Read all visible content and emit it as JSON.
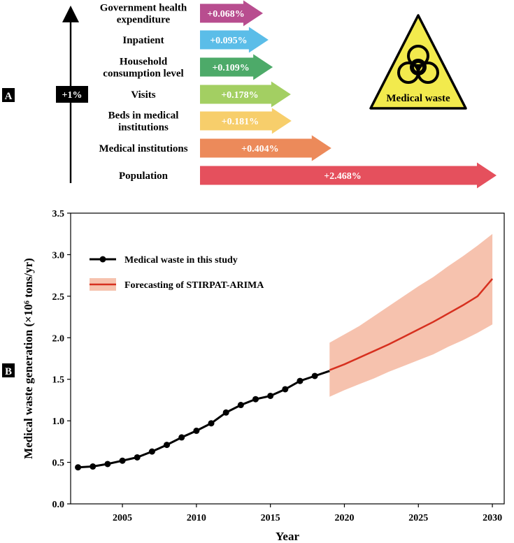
{
  "panel_a": {
    "label": "A",
    "arrow_label": "+1%",
    "warning_text": "Medical waste",
    "warning_icon": "biohazard-icon",
    "chart_data": {
      "type": "bar",
      "categories": [
        [
          "Government health",
          "expenditure"
        ],
        [
          "Inpatient"
        ],
        [
          "Household",
          "consumption level"
        ],
        [
          "Visits"
        ],
        [
          "Beds in medical",
          "institutions"
        ],
        [
          "Medical institutions"
        ],
        [
          "Population"
        ]
      ],
      "values": [
        0.068,
        0.095,
        0.109,
        0.178,
        0.181,
        0.404,
        2.468
      ],
      "value_labels": [
        "+0.068%",
        "+0.095%",
        "+0.109%",
        "+0.178%",
        "+0.181%",
        "+0.404%",
        "+2.468%"
      ],
      "colors": [
        "#b84d8f",
        "#5bbde8",
        "#4daa69",
        "#a3cf62",
        "#f7ce6b",
        "#ec8a5a",
        "#e5505d"
      ]
    }
  },
  "panel_b": {
    "label": "B",
    "chart_data": {
      "type": "line",
      "xlabel": "Year",
      "ylabel": "Medical waste generation (×10⁶ tons/yr)",
      "xlim": [
        2001.5,
        2030.8
      ],
      "ylim": [
        0,
        3.5
      ],
      "xticks": [
        2005,
        2010,
        2015,
        2020,
        2025,
        2030
      ],
      "yticks": [
        "0.0",
        "0.5",
        "1.0",
        "1.5",
        "2.0",
        "2.5",
        "3.0",
        "3.5"
      ],
      "series": [
        {
          "name": "Medical waste in this study",
          "color": "#000000",
          "x": [
            2002,
            2003,
            2004,
            2005,
            2006,
            2007,
            2008,
            2009,
            2010,
            2011,
            2012,
            2013,
            2014,
            2015,
            2016,
            2017,
            2018,
            2019
          ],
          "y": [
            0.44,
            0.45,
            0.48,
            0.52,
            0.56,
            0.63,
            0.71,
            0.8,
            0.88,
            0.97,
            1.1,
            1.19,
            1.26,
            1.3,
            1.38,
            1.48,
            1.54,
            1.6
          ]
        },
        {
          "name": "Forecasting of STIRPAT-ARIMA",
          "color": "#d7301f",
          "band_color": "#f6c2ae",
          "x": [
            2019,
            2020,
            2021,
            2022,
            2023,
            2024,
            2025,
            2026,
            2027,
            2028,
            2029,
            2030
          ],
          "y": [
            1.61,
            1.68,
            1.76,
            1.84,
            1.92,
            2.01,
            2.1,
            2.19,
            2.29,
            2.39,
            2.5,
            2.71
          ],
          "lower": [
            1.29,
            1.37,
            1.44,
            1.51,
            1.59,
            1.66,
            1.73,
            1.8,
            1.89,
            1.97,
            2.06,
            2.16
          ],
          "upper": [
            1.94,
            2.04,
            2.14,
            2.26,
            2.38,
            2.5,
            2.62,
            2.73,
            2.86,
            2.98,
            3.11,
            3.25
          ]
        }
      ],
      "legend": "upper-left"
    }
  }
}
